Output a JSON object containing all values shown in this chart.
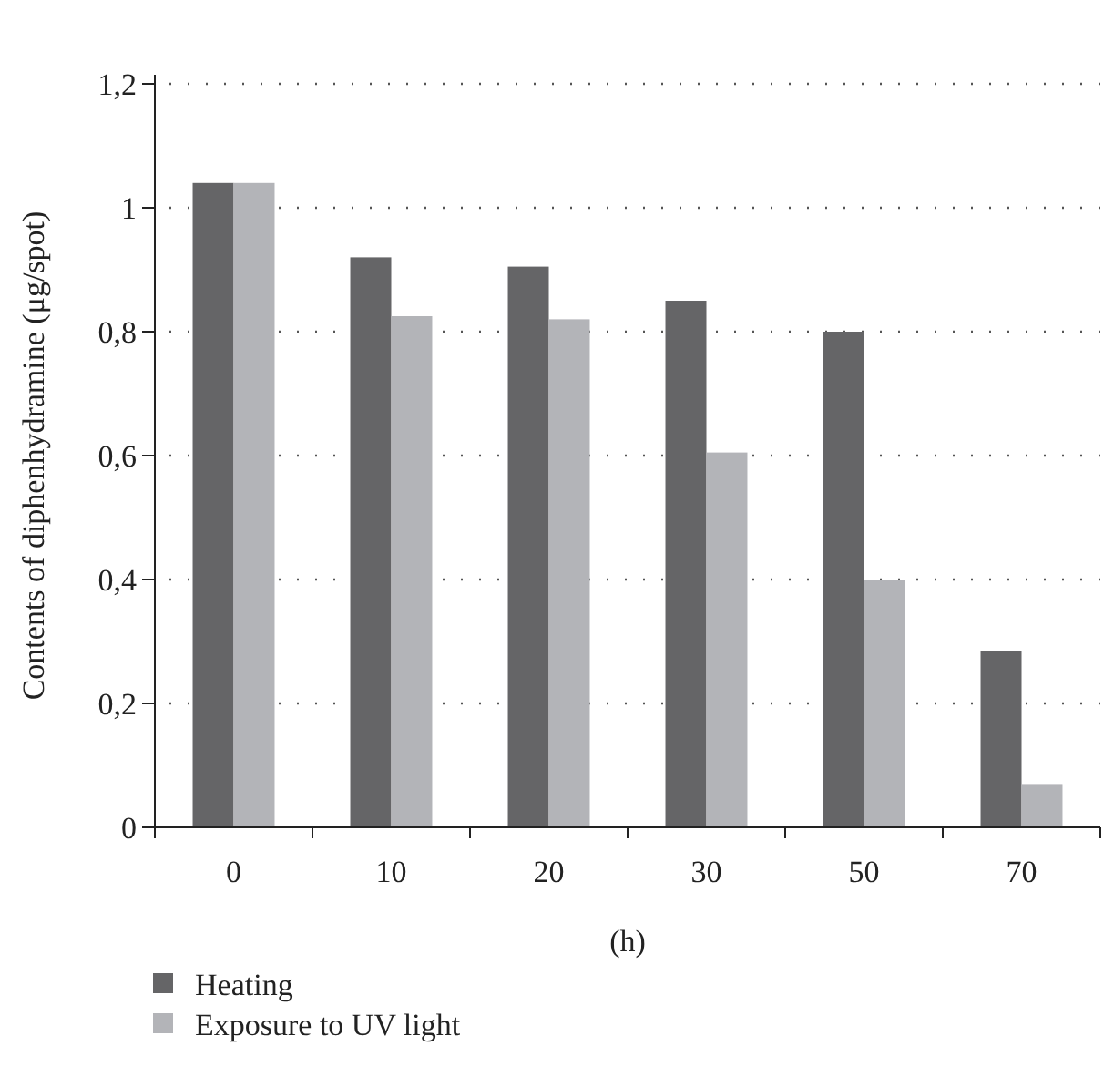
{
  "chart_data": {
    "type": "bar",
    "xlabel": "(h)",
    "ylabel": "Contents of diphenhydramine (μg/spot)",
    "categories": [
      "0",
      "10",
      "20",
      "30",
      "50",
      "70"
    ],
    "series": [
      {
        "name": "Heating",
        "color": "#656567",
        "values": [
          1.04,
          0.92,
          0.905,
          0.85,
          0.8,
          0.285
        ]
      },
      {
        "name": "Exposure to UV light",
        "color": "#b3b4b8",
        "values": [
          1.04,
          0.825,
          0.82,
          0.605,
          0.4,
          0.07
        ]
      }
    ],
    "ylim": [
      0,
      1.2
    ],
    "yticks": [
      0,
      {
        "value": 0.2,
        "label": "0,2"
      },
      {
        "value": 0.4,
        "label": "0,4"
      },
      {
        "value": 0.6,
        "label": "0,6"
      },
      {
        "value": 0.8,
        "label": "0,8"
      },
      1,
      {
        "value": 1.2,
        "label": "1,2"
      }
    ],
    "grid": "y",
    "legend": "bottom left"
  }
}
